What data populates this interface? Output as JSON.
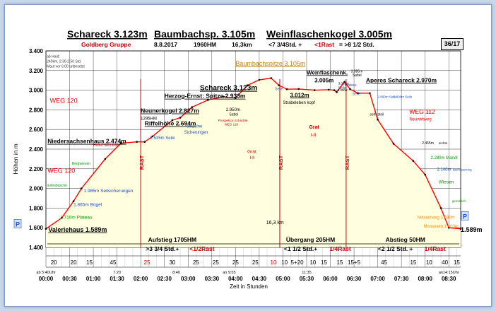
{
  "header": {
    "title_parts": [
      "Schareck 3.123m",
      "Baumbachsp. 3.105m",
      "Weinflaschenkogel 3.005m"
    ],
    "group": "Goldberg Gruppe",
    "date": "8.8.2017",
    "hm": "1960HM",
    "distance": "16,3km",
    "time_left": "<7 3/4Std. +",
    "time_rast": "<1Rast",
    "time_right": "= >8 1/2 Std.",
    "page": "36/17"
  },
  "colors": {
    "line": "#ff0000",
    "fill": "#ffffe0",
    "rast": "#cc0000",
    "blue": "#1f4fbf",
    "green": "#009900"
  },
  "chart_data": {
    "type": "area",
    "ylabel": "Höhen in m",
    "xlabel": "Zeit in Stunden",
    "ylim": [
      1400,
      3400
    ],
    "xlim_minutes": [
      0,
      525
    ],
    "y_ticks": [
      "1.400",
      "1.600",
      "1.800",
      "2.000",
      "2.200",
      "2.400",
      "2.600",
      "2.800",
      "3.000",
      "3.200",
      "3.400"
    ],
    "x_ticks": [
      "00:00",
      "00:30",
      "01:00",
      "01:30",
      "02:00",
      "02:30",
      "03:00",
      "03:30",
      "04:00",
      "04:30",
      "05:00",
      "05:30",
      "06:00",
      "06:30",
      "07:00",
      "07:30",
      "08:00",
      "08:30"
    ],
    "profile": [
      [
        0,
        1589
      ],
      [
        20,
        1700
      ],
      [
        35,
        1870
      ],
      [
        45,
        2000
      ],
      [
        75,
        2300
      ],
      [
        95,
        2460
      ],
      [
        115,
        2474
      ],
      [
        125,
        2474
      ],
      [
        135,
        2530
      ],
      [
        160,
        2694
      ],
      [
        170,
        2720
      ],
      [
        185,
        2827
      ],
      [
        205,
        2900
      ],
      [
        225,
        2933
      ],
      [
        240,
        2920
      ],
      [
        255,
        3050
      ],
      [
        270,
        3105
      ],
      [
        285,
        3123
      ],
      [
        295,
        3050
      ],
      [
        305,
        3010
      ],
      [
        320,
        3012
      ],
      [
        340,
        3000
      ],
      [
        358,
        3005
      ],
      [
        365,
        3000
      ],
      [
        368,
        2980
      ],
      [
        378,
        3085
      ],
      [
        385,
        3010
      ],
      [
        395,
        2970
      ],
      [
        410,
        2970
      ],
      [
        420,
        2700
      ],
      [
        440,
        2455
      ],
      [
        465,
        2280
      ],
      [
        480,
        2140
      ],
      [
        500,
        1800
      ],
      [
        510,
        1600
      ],
      [
        525,
        1589
      ]
    ],
    "rast_markers": [
      {
        "x": 120,
        "label": "RAST"
      },
      {
        "x": 296,
        "label": "RAST"
      },
      {
        "x": 380,
        "label": "RAST"
      }
    ],
    "segment_minutes": [
      {
        "x": 10,
        "v": "20"
      },
      {
        "x": 35,
        "v": "20"
      },
      {
        "x": 55,
        "v": "15"
      },
      {
        "x": 85,
        "v": "45"
      },
      {
        "x": 128,
        "v": "25",
        "rast": true
      },
      {
        "x": 160,
        "v": "30"
      },
      {
        "x": 190,
        "v": "25"
      },
      {
        "x": 215,
        "v": "25"
      },
      {
        "x": 240,
        "v": "25"
      },
      {
        "x": 265,
        "v": "25"
      },
      {
        "x": 288,
        "v": "10",
        "rast": true
      },
      {
        "x": 302,
        "v": "10"
      },
      {
        "x": 318,
        "v": "5+20",
        "mixed": true
      },
      {
        "x": 338,
        "v": "10"
      },
      {
        "x": 352,
        "v": "15"
      },
      {
        "x": 372,
        "v": "15"
      },
      {
        "x": 390,
        "v": "15+5",
        "mixed": true
      },
      {
        "x": 428,
        "v": "45"
      },
      {
        "x": 465,
        "v": "15"
      },
      {
        "x": 485,
        "v": "10"
      },
      {
        "x": 505,
        "v": "40"
      },
      {
        "x": 520,
        "v": "15"
      }
    ],
    "section_labels": [
      {
        "x": 160,
        "title": "Aufstieg 1705HM",
        "time": ">3 3/4 Std.+",
        "rast": "<1/2Rast"
      },
      {
        "x": 335,
        "title": "Übergang 205HM",
        "time": "<1 1/2 Std.+",
        "rast": "1/4Rast"
      },
      {
        "x": 455,
        "title": "Abstieg 50HM",
        "time": "<2 1/2 Std. +",
        "rast": "1/4Rast"
      }
    ],
    "distance_label": "16,3 km",
    "annotations": [
      {
        "x": 3,
        "y": 1560,
        "text": "Valeriehaus 1.589m",
        "size": 9,
        "bold": true,
        "underline": true,
        "color": "#000"
      },
      {
        "x": 1,
        "y": 3330,
        "text": "ab Haid:",
        "size": 5,
        "color": "#333"
      },
      {
        "x": 1,
        "y": 3280,
        "text": "240km, 2:30-2:50 Std.",
        "size": 5,
        "color": "#333"
      },
      {
        "x": 1,
        "y": 3230,
        "text": "Maut vor 6:00 unbesetzt",
        "size": 5,
        "color": "#333"
      },
      {
        "x": 5,
        "y": 2870,
        "text": "WEG 120",
        "size": 9,
        "color": "#ff0000"
      },
      {
        "x": 2,
        "y": 2160,
        "text": "WEG 120",
        "size": 9,
        "color": "#ff0000"
      },
      {
        "x": 2,
        "y": 2460,
        "text": "Niedersachsenhaus 2.474m",
        "size": 8.5,
        "bold": true,
        "underline": true,
        "color": "#000"
      },
      {
        "x": 60,
        "y": 2430,
        "text": "Hoher Sonnblick",
        "size": 5,
        "color": "#cc0000"
      },
      {
        "x": 33,
        "y": 2240,
        "text": "Bergwiesen",
        "size": 5,
        "color": "#009900"
      },
      {
        "x": 2,
        "y": 2020,
        "text": "Erlenbüsche",
        "size": 5,
        "color": "#009900"
      },
      {
        "x": 48,
        "y": 1960,
        "text": "1.985m Seilsicherungen",
        "size": 6.5,
        "color": "#1f4fbf"
      },
      {
        "x": 35,
        "y": 1820,
        "text": "1.865m Bügel",
        "size": 6.5,
        "color": "#1f4fbf"
      },
      {
        "x": 18,
        "y": 1690,
        "text": "1.710m Plateau",
        "size": 6.5,
        "color": "#009900"
      },
      {
        "x": 120,
        "y": 2770,
        "text": "Neunerkogel 2.827m",
        "size": 8.5,
        "bold": true,
        "underline": true,
        "color": "#000"
      },
      {
        "x": 120,
        "y": 2700,
        "text": "1295HM",
        "size": 6,
        "color": "#000"
      },
      {
        "x": 125,
        "y": 2640,
        "text": "Riffelhöhe 2.694m",
        "size": 8.5,
        "bold": true,
        "underline": true,
        "color": "#000"
      },
      {
        "x": 150,
        "y": 2920,
        "text": "Herzog-Ernst: Spitze 2.933m",
        "size": 8.5,
        "bold": true,
        "underline": true,
        "color": "#000"
      },
      {
        "x": 195,
        "y": 3000,
        "text": "Schareck 3.123m",
        "size": 10,
        "bold": true,
        "underline": true,
        "color": "#000"
      },
      {
        "x": 240,
        "y": 3250,
        "text": "Baumbachspitze 3.105m",
        "size": 9,
        "underline": true,
        "color": "#b8860b"
      },
      {
        "x": 132,
        "y": 2500,
        "text": "2.535m Seile",
        "size": 6,
        "color": "#1f4fbf"
      },
      {
        "x": 178,
        "y": 2620,
        "text": "einzelne",
        "size": 6,
        "color": "#1f4fbf"
      },
      {
        "x": 175,
        "y": 2560,
        "text": "Sicherungen",
        "size": 6,
        "color": "#1f4fbf"
      },
      {
        "x": 228,
        "y": 2790,
        "text": "2.950m",
        "size": 6,
        "color": "#000"
      },
      {
        "x": 232,
        "y": 2740,
        "text": "Sattel",
        "size": 5,
        "color": "#000"
      },
      {
        "x": 218,
        "y": 2680,
        "text": "Prospektor Schachte",
        "size": 4.5,
        "color": "#cc0000"
      },
      {
        "x": 226,
        "y": 2640,
        "text": "WEG 119",
        "size": 4.5,
        "color": "#cc0000"
      },
      {
        "x": 290,
        "y": 3000,
        "text": "Seile",
        "size": 5,
        "color": "#1f4fbf"
      },
      {
        "x": 330,
        "y": 3160,
        "text": "Weinflaschenk.",
        "size": 8,
        "bold": true,
        "underline": true,
        "color": "#000"
      },
      {
        "x": 340,
        "y": 3080,
        "text": "3.005m",
        "size": 8,
        "bold": true,
        "color": "#000"
      },
      {
        "x": 309,
        "y": 2930,
        "text": "3.012m",
        "size": 8,
        "bold": true,
        "underline": true,
        "color": "#000"
      },
      {
        "x": 300,
        "y": 2860,
        "text": "Strabeleben kopf",
        "size": 6,
        "color": "#000"
      },
      {
        "x": 370,
        "y": 3010,
        "text": "Seile",
        "size": 5,
        "color": "#1f4fbf"
      },
      {
        "x": 369,
        "y": 2990,
        "text": "3.000m",
        "size": 4.5,
        "color": "#000"
      },
      {
        "x": 378,
        "y": 3040,
        "text": "Plateau",
        "size": 5,
        "color": "#1f4fbf"
      },
      {
        "x": 386,
        "y": 3180,
        "text": "3.085m",
        "size": 5,
        "color": "#000"
      },
      {
        "x": 388,
        "y": 3140,
        "text": "Sattel",
        "size": 5,
        "color": "#000"
      },
      {
        "x": 370,
        "y": 3060,
        "text": "3.062m",
        "size": 4.5,
        "color": "#000"
      },
      {
        "x": 405,
        "y": 3080,
        "text": "Aperes Schareck 2.970m",
        "size": 8.5,
        "bold": true,
        "underline": true,
        "color": "#000"
      },
      {
        "x": 420,
        "y": 2920,
        "text": "2.890m   Seile",
        "size": 4.5,
        "color": "#1f4fbf"
      },
      {
        "x": 440,
        "y": 2920,
        "text": "2.890m   Seile",
        "size": 4.5,
        "color": "#1f4fbf"
      },
      {
        "x": 388,
        "y": 2950,
        "text": "Seile",
        "size": 5,
        "color": "#1f4fbf"
      },
      {
        "x": 410,
        "y": 2740,
        "text": "sehr steil",
        "size": 5,
        "color": "#000"
      },
      {
        "x": 460,
        "y": 2760,
        "text": "WEG 112",
        "size": 8.5,
        "color": "#ff0000"
      },
      {
        "x": 460,
        "y": 2690,
        "text": "Neuwirtweg",
        "size": 6,
        "color": "#ff0000"
      },
      {
        "x": 476,
        "y": 2450,
        "text": "2.455m",
        "size": 5,
        "color": "#000"
      },
      {
        "x": 497,
        "y": 2450,
        "text": "rechts",
        "size": 4.5,
        "color": "#000"
      },
      {
        "x": 487,
        "y": 2300,
        "text": "2.280m Mandl",
        "size": 6,
        "color": "#009900"
      },
      {
        "x": 495,
        "y": 2180,
        "text": "2.140m",
        "size": 6,
        "color": "#1f4fbf"
      },
      {
        "x": 515,
        "y": 2180,
        "text": "Bachquerung",
        "size": 4.5,
        "color": "#1f4fbf"
      },
      {
        "x": 497,
        "y": 2050,
        "text": "Wiesen",
        "size": 6.5,
        "color": "#009900"
      },
      {
        "x": 514,
        "y": 1860,
        "text": "gemütlich",
        "size": 4.5,
        "color": "#009900"
      },
      {
        "x": 470,
        "y": 1690,
        "text": "Neuwirtweg 1.690m",
        "size": 6,
        "color": "#ff8c00"
      },
      {
        "x": 478,
        "y": 1600,
        "text": "Moosealm 1.600m",
        "size": 6,
        "color": "#ff8c00"
      },
      {
        "x": 525,
        "y": 1560,
        "text": "1.589m",
        "size": 9,
        "bold": true,
        "color": "#000"
      },
      {
        "x": 255,
        "y": 2360,
        "text": "Grat",
        "size": 6.5,
        "color": "#cc0000"
      },
      {
        "x": 258,
        "y": 2300,
        "text": "I-II",
        "size": 6,
        "color": "#cc0000"
      },
      {
        "x": 333,
        "y": 2610,
        "text": "Grat",
        "size": 7,
        "bold": true,
        "color": "#cc0000"
      },
      {
        "x": 335,
        "y": 2530,
        "text": "I-II",
        "size": 6.5,
        "color": "#cc0000"
      }
    ],
    "time_marks": [
      {
        "x": 0,
        "text": "ab 5:40Uhr"
      },
      {
        "x": 90,
        "text": "7:20"
      },
      {
        "x": 165,
        "text": "8:40"
      },
      {
        "x": 232,
        "text": "an 9:55"
      },
      {
        "x": 330,
        "text": "11:35"
      },
      {
        "x": 510,
        "text": "an14:15Uhr"
      }
    ]
  }
}
